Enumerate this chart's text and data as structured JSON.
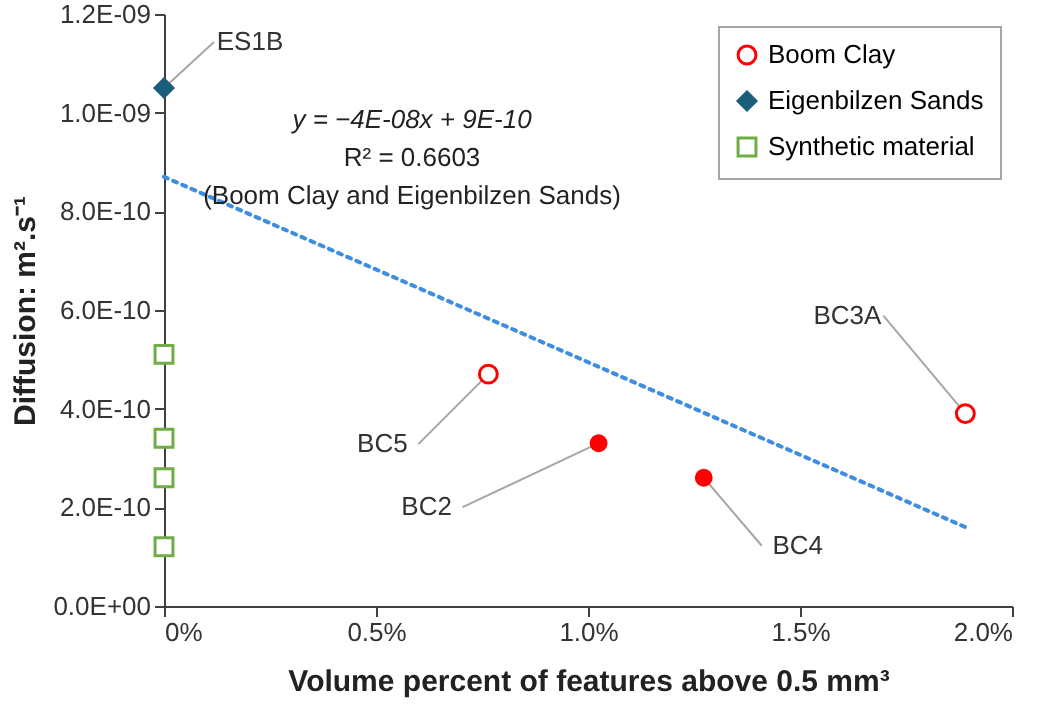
{
  "chart_data": {
    "type": "scatter",
    "xlabel": "Volume percent of features above 0.5 mm³",
    "ylabel": "Diffusion: m².s⁻¹",
    "xlim": [
      0,
      2.0
    ],
    "xticks": [
      {
        "value": 0,
        "label": "0%"
      },
      {
        "value": 0.5,
        "label": "0.5%"
      },
      {
        "value": 1.0,
        "label": "1.0%"
      },
      {
        "value": 1.5,
        "label": "1.5%"
      },
      {
        "value": 2.0,
        "label": "2.0%"
      }
    ],
    "ylim": [
      0,
      1.2e-09
    ],
    "yticks": [
      {
        "value": 0,
        "label": "0.0E+00"
      },
      {
        "value": 2e-10,
        "label": "2.0E-10"
      },
      {
        "value": 4e-10,
        "label": "4.0E-10"
      },
      {
        "value": 6e-10,
        "label": "6.0E-10"
      },
      {
        "value": 8e-10,
        "label": "8.0E-10"
      },
      {
        "value": 1e-09,
        "label": "1.0E-09"
      },
      {
        "value": 1.2e-09,
        "label": "1.2E-09"
      }
    ],
    "grid": false,
    "legend": "top right",
    "series": [
      {
        "name": "Boom Clay",
        "marker": "circle",
        "color": "#ff0000",
        "x": [
          0.765,
          1.89
        ],
        "values": [
          4.7e-10,
          3.9e-10
        ]
      },
      {
        "name": "Eigenbilzen Sands",
        "marker": "diamond",
        "color": "#1b5e7b",
        "x": [
          0
        ],
        "values": [
          1.05e-09
        ]
      },
      {
        "name": "Synthetic material",
        "marker": "square",
        "color": "#70ad47",
        "x": [
          0,
          0,
          0,
          0
        ],
        "values": [
          5.1e-10,
          3.4e-10,
          2.6e-10,
          1.2e-10
        ]
      },
      {
        "marker": "circle",
        "color": "#ff0000",
        "x": [
          1.025,
          1.273
        ],
        "values": [
          3.3e-10,
          2.6e-10
        ]
      },
      {
        "type": "line",
        "line_style": "dotted",
        "color": "#3d8ee0",
        "x": [
          0,
          1.89
        ],
        "values": [
          8.7e-10,
          1.6e-10
        ]
      }
    ],
    "annotations": [
      {
        "text": "ES1B",
        "x": 0,
        "y": 1.05e-09
      },
      {
        "text": "BC5",
        "x": 0.765,
        "y": 4.7e-10
      },
      {
        "text": "BC2",
        "x": 1.025,
        "y": 3.3e-10
      },
      {
        "text": "BC4",
        "x": 1.273,
        "y": 2.6e-10
      },
      {
        "text": "BC3A",
        "x": 1.89,
        "y": 3.9e-10
      },
      "y = −4E-08x + 9E-10",
      "R² = 0.6603",
      "(Boom Clay and Eigenbilzen Sands)"
    ]
  }
}
